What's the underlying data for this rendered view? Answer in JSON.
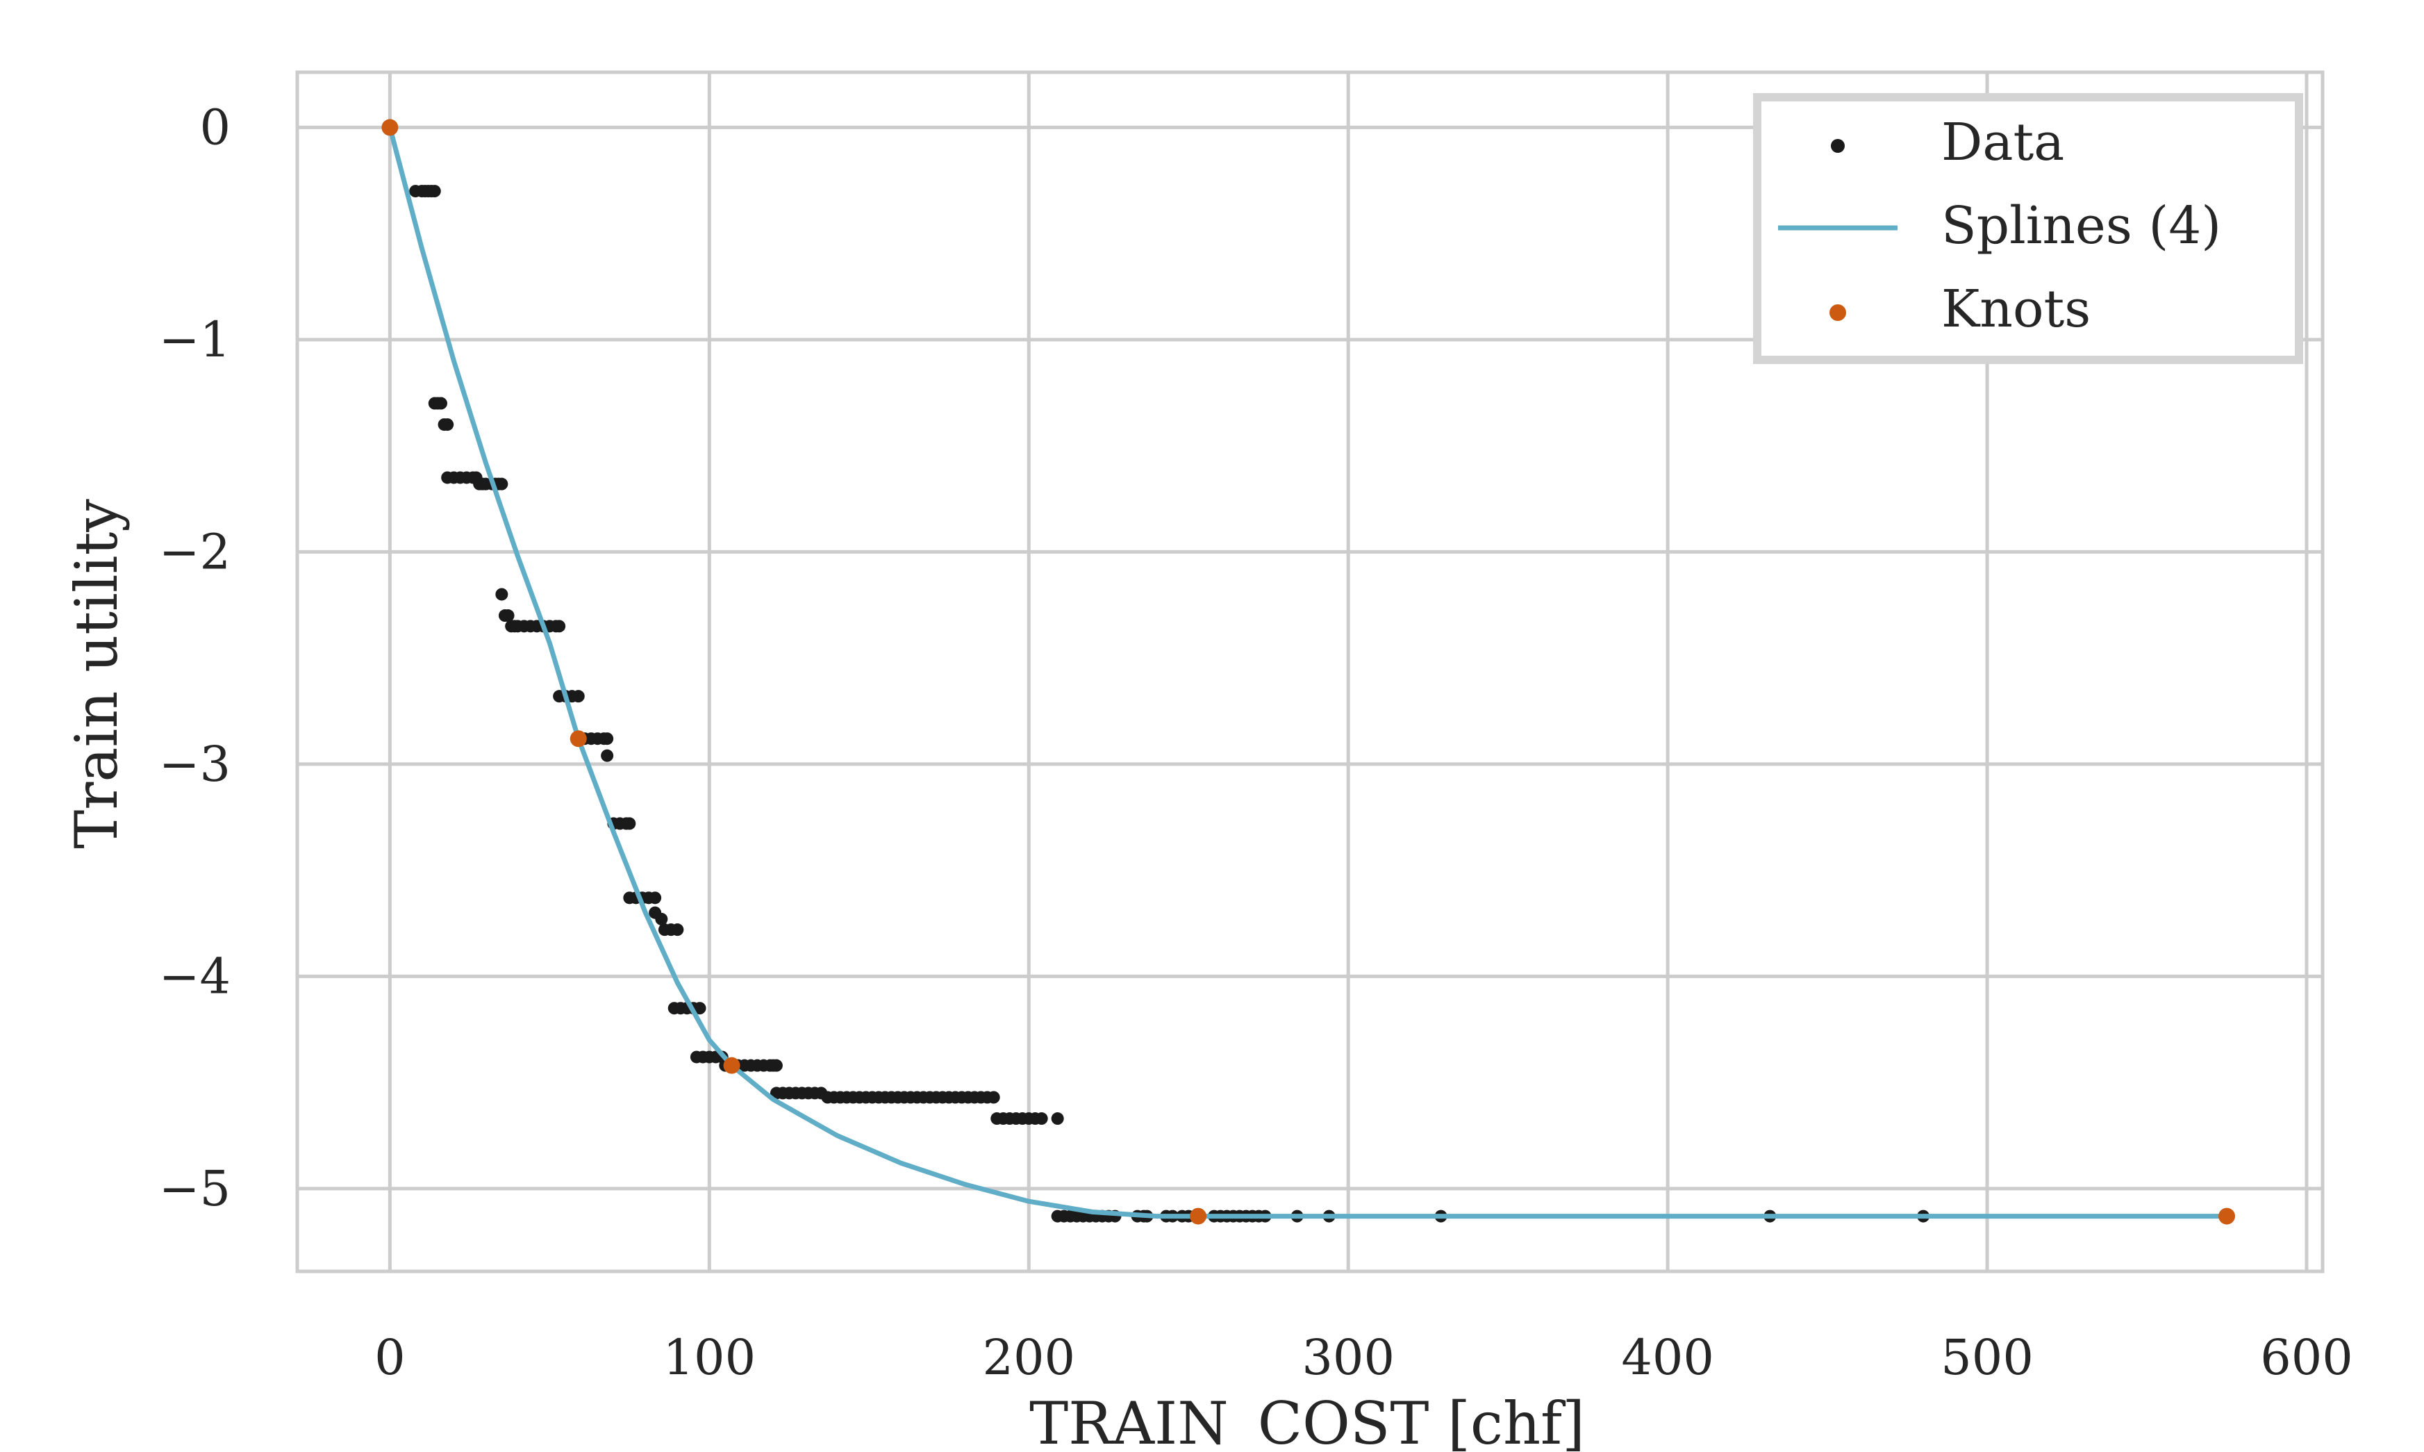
{
  "chart_data": {
    "type": "scatter",
    "xlabel": "TRAIN_COST [chf]",
    "ylabel": "Train utility",
    "xlim": [
      -29,
      605
    ],
    "ylim": [
      -5.39,
      0.26
    ],
    "xticks": [
      0,
      100,
      200,
      300,
      400,
      500,
      600
    ],
    "yticks": [
      0,
      -1,
      -2,
      -3,
      -4,
      -5
    ],
    "xtick_labels": [
      "0",
      "100",
      "200",
      "300",
      "400",
      "500",
      "600"
    ],
    "ytick_labels": [
      "0",
      "−1",
      "−2",
      "−3",
      "−4",
      "−5"
    ],
    "grid": true,
    "legend_position": "top-right",
    "legend": [
      {
        "label": "Data",
        "marker": "dot",
        "color": "#1a1a1a"
      },
      {
        "label": "Splines (4)",
        "marker": "line",
        "color": "#5fadc6"
      },
      {
        "label": "Knots",
        "marker": "dot",
        "color": "#cc5a10"
      }
    ],
    "colors": {
      "data": "#1a1a1a",
      "spline": "#5fadc6",
      "knots": "#cc5a10",
      "grid": "#cccccc"
    },
    "series": [
      {
        "name": "Data",
        "points": [
          [
            0,
            0
          ],
          [
            8,
            -0.3
          ],
          [
            10,
            -0.3
          ],
          [
            11,
            -0.3
          ],
          [
            12,
            -0.3
          ],
          [
            13,
            -0.3
          ],
          [
            14,
            -0.3
          ],
          [
            14,
            -1.3
          ],
          [
            15,
            -1.3
          ],
          [
            16,
            -1.3
          ],
          [
            17,
            -1.4
          ],
          [
            18,
            -1.4
          ],
          [
            18,
            -1.65
          ],
          [
            20,
            -1.65
          ],
          [
            22,
            -1.65
          ],
          [
            24,
            -1.65
          ],
          [
            26,
            -1.65
          ],
          [
            27,
            -1.65
          ],
          [
            28,
            -1.68
          ],
          [
            29,
            -1.68
          ],
          [
            30,
            -1.68
          ],
          [
            32,
            -1.68
          ],
          [
            33,
            -1.68
          ],
          [
            34,
            -1.68
          ],
          [
            35,
            -1.68
          ],
          [
            35,
            -2.2
          ],
          [
            36,
            -2.3
          ],
          [
            37,
            -2.3
          ],
          [
            38,
            -2.35
          ],
          [
            39,
            -2.35
          ],
          [
            40,
            -2.35
          ],
          [
            42,
            -2.35
          ],
          [
            44,
            -2.35
          ],
          [
            46,
            -2.35
          ],
          [
            48,
            -2.35
          ],
          [
            50,
            -2.35
          ],
          [
            52,
            -2.35
          ],
          [
            53,
            -2.35
          ],
          [
            53,
            -2.68
          ],
          [
            55,
            -2.68
          ],
          [
            57,
            -2.68
          ],
          [
            59,
            -2.68
          ],
          [
            59,
            -2.88
          ],
          [
            61,
            -2.88
          ],
          [
            63,
            -2.88
          ],
          [
            65,
            -2.88
          ],
          [
            67,
            -2.88
          ],
          [
            68,
            -2.88
          ],
          [
            68,
            -2.96
          ],
          [
            70,
            -3.28
          ],
          [
            72,
            -3.28
          ],
          [
            74,
            -3.28
          ],
          [
            75,
            -3.28
          ],
          [
            75,
            -3.63
          ],
          [
            77,
            -3.63
          ],
          [
            79,
            -3.63
          ],
          [
            81,
            -3.63
          ],
          [
            83,
            -3.63
          ],
          [
            83,
            -3.7
          ],
          [
            85,
            -3.73
          ],
          [
            86,
            -3.78
          ],
          [
            88,
            -3.78
          ],
          [
            90,
            -3.78
          ],
          [
            89,
            -4.15
          ],
          [
            91,
            -4.15
          ],
          [
            93,
            -4.15
          ],
          [
            95,
            -4.15
          ],
          [
            97,
            -4.15
          ],
          [
            96,
            -4.38
          ],
          [
            98,
            -4.38
          ],
          [
            100,
            -4.38
          ],
          [
            102,
            -4.38
          ],
          [
            104,
            -4.38
          ],
          [
            105,
            -4.42
          ],
          [
            107,
            -4.42
          ],
          [
            109,
            -4.42
          ],
          [
            111,
            -4.42
          ],
          [
            113,
            -4.42
          ],
          [
            115,
            -4.42
          ],
          [
            117,
            -4.42
          ],
          [
            119,
            -4.42
          ],
          [
            120,
            -4.42
          ],
          [
            121,
            -4.42
          ],
          [
            121,
            -4.55
          ],
          [
            123,
            -4.55
          ],
          [
            125,
            -4.55
          ],
          [
            127,
            -4.55
          ],
          [
            129,
            -4.55
          ],
          [
            131,
            -4.55
          ],
          [
            133,
            -4.55
          ],
          [
            135,
            -4.55
          ],
          [
            137,
            -4.57
          ],
          [
            139,
            -4.57
          ],
          [
            141,
            -4.57
          ],
          [
            143,
            -4.57
          ],
          [
            145,
            -4.57
          ],
          [
            147,
            -4.57
          ],
          [
            149,
            -4.57
          ],
          [
            151,
            -4.57
          ],
          [
            153,
            -4.57
          ],
          [
            155,
            -4.57
          ],
          [
            157,
            -4.57
          ],
          [
            159,
            -4.57
          ],
          [
            161,
            -4.57
          ],
          [
            163,
            -4.57
          ],
          [
            165,
            -4.57
          ],
          [
            167,
            -4.57
          ],
          [
            169,
            -4.57
          ],
          [
            171,
            -4.57
          ],
          [
            173,
            -4.57
          ],
          [
            175,
            -4.57
          ],
          [
            177,
            -4.57
          ],
          [
            179,
            -4.57
          ],
          [
            181,
            -4.57
          ],
          [
            183,
            -4.57
          ],
          [
            185,
            -4.57
          ],
          [
            187,
            -4.57
          ],
          [
            189,
            -4.57
          ],
          [
            190,
            -4.67
          ],
          [
            192,
            -4.67
          ],
          [
            194,
            -4.67
          ],
          [
            196,
            -4.67
          ],
          [
            198,
            -4.67
          ],
          [
            200,
            -4.67
          ],
          [
            202,
            -4.67
          ],
          [
            204,
            -4.67
          ],
          [
            209,
            -4.67
          ],
          [
            209,
            -5.13
          ],
          [
            211,
            -5.13
          ],
          [
            213,
            -5.13
          ],
          [
            215,
            -5.13
          ],
          [
            217,
            -5.13
          ],
          [
            219,
            -5.13
          ],
          [
            221,
            -5.13
          ],
          [
            223,
            -5.13
          ],
          [
            225,
            -5.13
          ],
          [
            227,
            -5.13
          ],
          [
            234,
            -5.13
          ],
          [
            236,
            -5.13
          ],
          [
            237,
            -5.13
          ],
          [
            243,
            -5.13
          ],
          [
            245,
            -5.13
          ],
          [
            248,
            -5.13
          ],
          [
            250,
            -5.13
          ],
          [
            252,
            -5.13
          ],
          [
            258,
            -5.13
          ],
          [
            260,
            -5.13
          ],
          [
            262,
            -5.13
          ],
          [
            264,
            -5.13
          ],
          [
            266,
            -5.13
          ],
          [
            268,
            -5.13
          ],
          [
            270,
            -5.13
          ],
          [
            272,
            -5.13
          ],
          [
            274,
            -5.13
          ],
          [
            284,
            -5.13
          ],
          [
            294,
            -5.13
          ],
          [
            329,
            -5.13
          ],
          [
            432,
            -5.13
          ],
          [
            480,
            -5.13
          ],
          [
            575,
            -5.13
          ]
        ]
      },
      {
        "name": "Splines (4)",
        "x": [
          0,
          10,
          20,
          30,
          40,
          50,
          59,
          70,
          80,
          90,
          100,
          107,
          120,
          140,
          160,
          180,
          200,
          220,
          240,
          253,
          300,
          350,
          400,
          450,
          500,
          550,
          575
        ],
        "y": [
          0,
          -0.57,
          -1.1,
          -1.58,
          -2.02,
          -2.43,
          -2.88,
          -3.32,
          -3.7,
          -4.03,
          -4.3,
          -4.42,
          -4.58,
          -4.75,
          -4.88,
          -4.98,
          -5.06,
          -5.11,
          -5.13,
          -5.13,
          -5.13,
          -5.13,
          -5.13,
          -5.13,
          -5.13,
          -5.13,
          -5.13
        ]
      },
      {
        "name": "Knots",
        "points": [
          [
            0,
            0
          ],
          [
            59,
            -2.88
          ],
          [
            107,
            -4.42
          ],
          [
            253,
            -5.13
          ],
          [
            575,
            -5.13
          ]
        ]
      }
    ]
  }
}
